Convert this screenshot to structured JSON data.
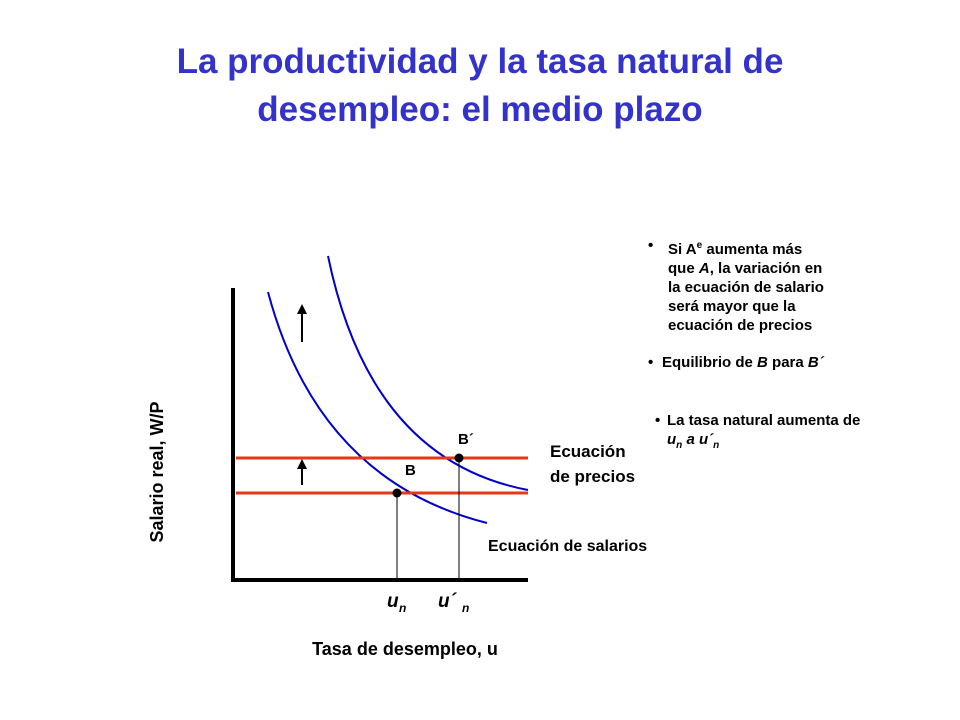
{
  "slide": {
    "title_line1": "La productividad y la tasa natural de",
    "title_line2": "desempleo: el medio plazo",
    "colors": {
      "title": "#3333cc",
      "wage_curve": "#0000cc",
      "price_line": "#e03a1a",
      "text": "#000000"
    }
  },
  "diagram": {
    "y_axis_label": "Salario real, W/P",
    "x_axis_label": "Tasa de desempleo, u",
    "point_b": "B",
    "point_b_prime": "B´",
    "price_eq_line1": "Ecuación",
    "price_eq_line2": "de precios",
    "wage_eq": "Ecuación de salarios",
    "un_u": "u",
    "un_n": "n",
    "un_prime_u": "u´",
    "un_prime_n": "n",
    "arrow_icon": "up-arrow-icon"
  },
  "notes": {
    "b1_bullet": "•",
    "b1_l1_a": "Si A",
    "b1_l1_sup": "e",
    "b1_l1_b": " aumenta más",
    "b1_l2_a": "que ",
    "b1_l2_it": "A",
    "b1_l2_b": ", la variación en",
    "b1_l3": "la ecuación de salario",
    "b1_l4": "será mayor que la",
    "b1_l5": "ecuación de precios",
    "b2_bullet": "•",
    "b2_a": "Equilibrio de ",
    "b2_it1": "B",
    "b2_b": " para ",
    "b2_it2": "B´",
    "b3_bullet": "•",
    "b3_l1": "La tasa natural aumenta de",
    "b3_u1": "u",
    "b3_n1": "n",
    "b3_mid": " a ",
    "b3_u2": "u´",
    "b3_n2": "n"
  }
}
